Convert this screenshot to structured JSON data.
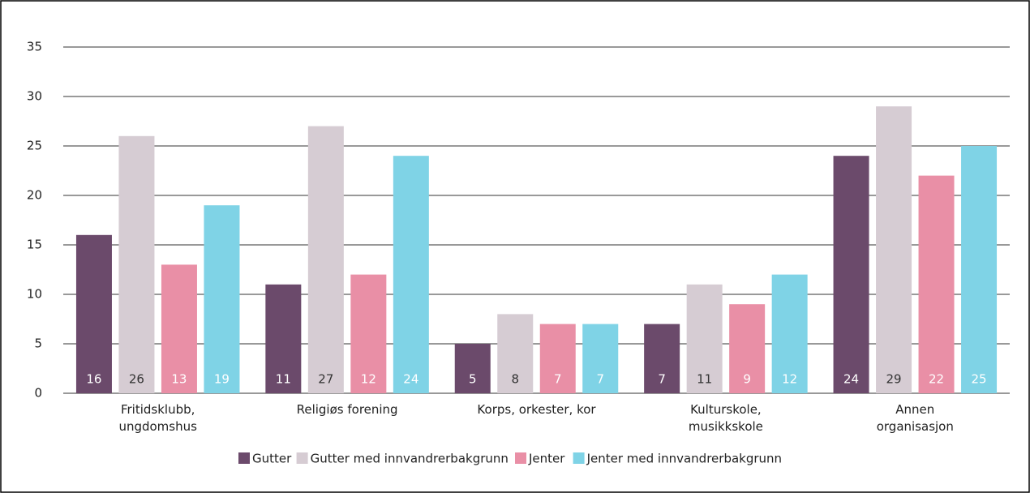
{
  "chart_data": {
    "type": "bar",
    "categories": [
      "Fritidsklubb,\nungdomshus",
      "Religiøs forening",
      "Korps, orkester, kor",
      "Kulturskole,\nmusikkskole",
      "Annen\norganisasjon"
    ],
    "series": [
      {
        "name": "Gutter",
        "color": "#6b4a6b",
        "values": [
          16,
          11,
          5,
          7,
          24
        ]
      },
      {
        "name": "Gutter med innvandrerbakgrunn",
        "color": "#d6ccd3",
        "values": [
          26,
          27,
          8,
          11,
          29
        ]
      },
      {
        "name": "Jenter",
        "color": "#e98fa6",
        "values": [
          13,
          12,
          7,
          9,
          22
        ]
      },
      {
        "name": "Jenter med innvandrerbakgrunn",
        "color": "#7fd3e6",
        "values": [
          19,
          24,
          7,
          12,
          25
        ]
      }
    ],
    "ylim": [
      0,
      35
    ],
    "yticks": [
      0,
      5,
      10,
      15,
      20,
      25,
      30,
      35
    ],
    "grid": true,
    "legend": "bottom"
  }
}
